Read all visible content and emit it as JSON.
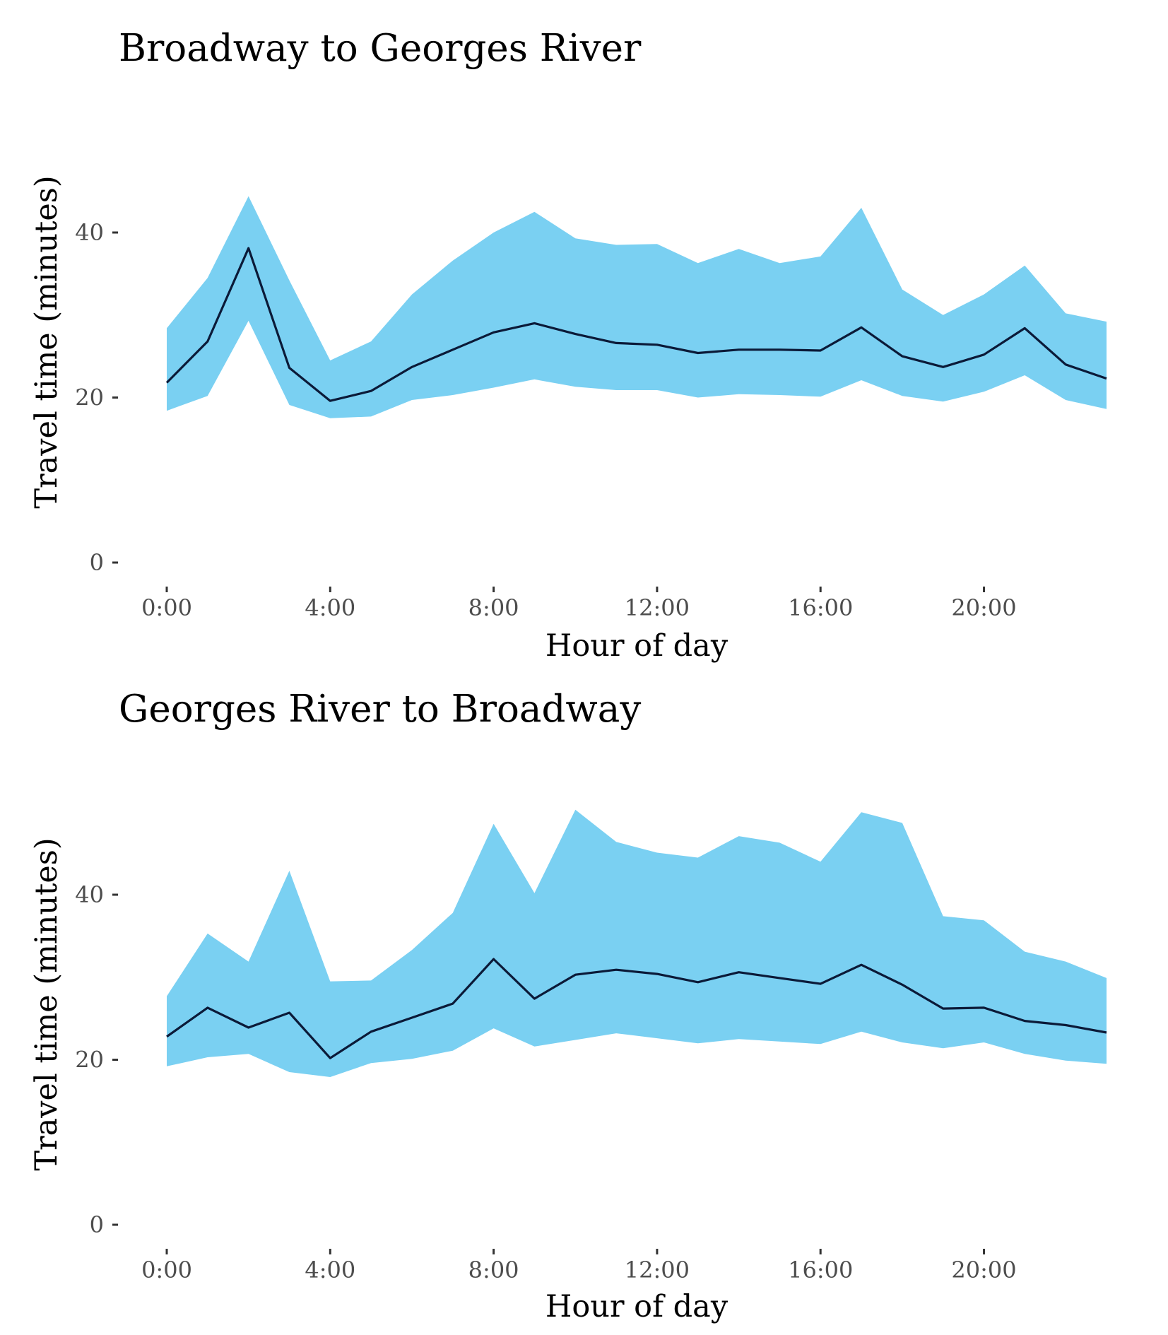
{
  "chart_data": [
    {
      "type": "area",
      "title": "Broadway to Georges River",
      "xlabel": "Hour of day",
      "ylabel": "Travel time (minutes)",
      "xlim": [
        0,
        23
      ],
      "ylim": [
        0,
        50
      ],
      "x_ticks": [
        0,
        4,
        8,
        12,
        16,
        20
      ],
      "x_tick_labels": [
        "0:00",
        "4:00",
        "8:00",
        "12:00",
        "16:00",
        "20:00"
      ],
      "y_ticks": [
        0,
        20,
        40
      ],
      "y_tick_labels": [
        "0",
        "20",
        "40"
      ],
      "grid": false,
      "band_color": "#7ad0f2",
      "line_color": "#0b1a38",
      "x": [
        0,
        1,
        2,
        3,
        4,
        5,
        6,
        7,
        8,
        9,
        10,
        11,
        12,
        13,
        14,
        15,
        16,
        17,
        18,
        19,
        20,
        21,
        22,
        23
      ],
      "series": [
        {
          "role": "median",
          "values": [
            21.8,
            26.8,
            38.1,
            23.6,
            19.6,
            20.8,
            23.7,
            25.8,
            27.9,
            29.0,
            27.7,
            26.6,
            26.4,
            25.4,
            25.8,
            25.8,
            25.7,
            28.5,
            25.0,
            23.7,
            25.2,
            28.4,
            24.0,
            22.3
          ]
        },
        {
          "role": "upper",
          "values": [
            28.4,
            34.5,
            44.4,
            34.2,
            24.5,
            26.8,
            32.5,
            36.6,
            40.0,
            42.5,
            39.3,
            38.5,
            38.6,
            36.3,
            38.0,
            36.3,
            37.1,
            43.0,
            33.1,
            30.0,
            32.5,
            36.0,
            30.2,
            29.2
          ]
        },
        {
          "role": "lower",
          "values": [
            18.4,
            20.2,
            29.3,
            19.1,
            17.5,
            17.7,
            19.7,
            20.3,
            21.2,
            22.2,
            21.3,
            20.9,
            20.9,
            20.0,
            20.4,
            20.3,
            20.1,
            22.1,
            20.2,
            19.5,
            20.7,
            22.7,
            19.7,
            18.6
          ]
        }
      ]
    },
    {
      "type": "area",
      "title": "Georges River to Broadway",
      "xlabel": "Hour of day",
      "ylabel": "Travel time (minutes)",
      "xlim": [
        0,
        23
      ],
      "ylim": [
        0,
        50
      ],
      "x_ticks": [
        0,
        4,
        8,
        12,
        16,
        20
      ],
      "x_tick_labels": [
        "0:00",
        "4:00",
        "8:00",
        "12:00",
        "16:00",
        "20:00"
      ],
      "y_ticks": [
        0,
        20,
        40
      ],
      "y_tick_labels": [
        "0",
        "20",
        "40"
      ],
      "grid": false,
      "band_color": "#7ad0f2",
      "line_color": "#0b1a38",
      "x": [
        0,
        1,
        2,
        3,
        4,
        5,
        6,
        7,
        8,
        9,
        10,
        11,
        12,
        13,
        14,
        15,
        16,
        17,
        18,
        19,
        20,
        21,
        22,
        23
      ],
      "series": [
        {
          "role": "median",
          "values": [
            22.8,
            26.3,
            23.9,
            25.7,
            20.2,
            23.4,
            25.1,
            26.8,
            32.2,
            27.4,
            30.3,
            30.9,
            30.4,
            29.4,
            30.6,
            29.9,
            29.2,
            31.5,
            29.1,
            26.2,
            26.3,
            24.7,
            24.2,
            23.3
          ]
        },
        {
          "role": "upper",
          "values": [
            27.7,
            35.3,
            31.9,
            42.9,
            29.5,
            29.6,
            33.3,
            37.8,
            48.6,
            40.2,
            50.3,
            46.4,
            45.1,
            44.5,
            47.1,
            46.3,
            44.0,
            50.0,
            48.7,
            37.4,
            36.9,
            33.1,
            31.9,
            29.9
          ]
        },
        {
          "role": "lower",
          "values": [
            19.2,
            20.3,
            20.7,
            18.5,
            17.9,
            19.6,
            20.1,
            21.1,
            23.8,
            21.6,
            22.4,
            23.2,
            22.6,
            22.0,
            22.5,
            22.2,
            21.9,
            23.4,
            22.1,
            21.4,
            22.1,
            20.7,
            19.9,
            19.5
          ]
        }
      ]
    }
  ]
}
